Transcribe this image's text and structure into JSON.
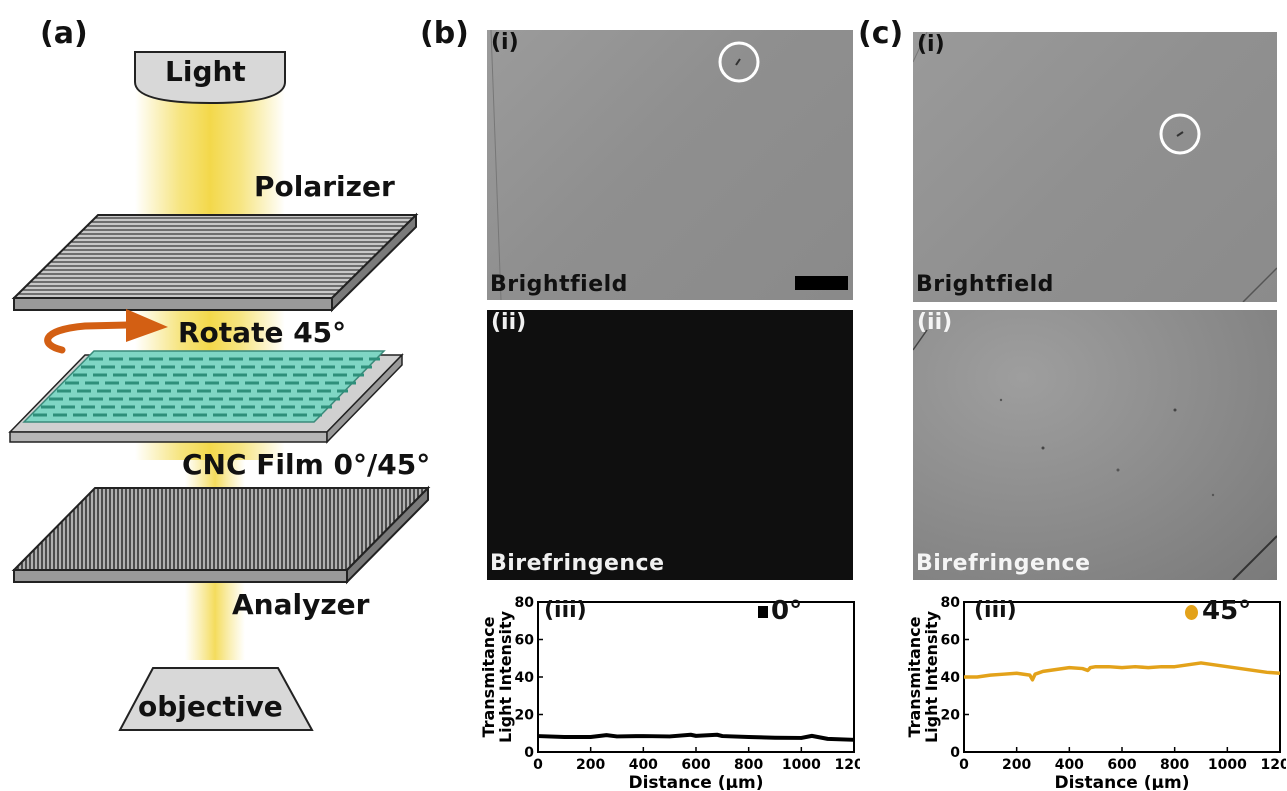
{
  "panels": {
    "a": {
      "label": "(a)",
      "light": "Light",
      "polarizer": "Polarizer",
      "rotate": "Rotate 45°",
      "film": "CNC Film 0°/45°",
      "analyzer": "Analyzer",
      "objective": "objective"
    },
    "b": {
      "label": "(b)",
      "i_label": "(i)",
      "i_caption": "Brightfield",
      "ii_label": "(ii)",
      "ii_caption": "Birefringence",
      "iii_label": "(iii)",
      "legend": "0°"
    },
    "c": {
      "label": "(c)",
      "i_label": "(i)",
      "i_caption": "Brightfield",
      "ii_label": "(ii)",
      "ii_caption": "Birefringence",
      "iii_label": "(iii)",
      "legend": "45°"
    }
  },
  "colors": {
    "light_beam": "#f5e06a",
    "arrow": "#d35f13",
    "film": "#7fd6c4",
    "series_0": "#000000",
    "series_45": "#e3a21a"
  },
  "chart_data": [
    {
      "type": "line",
      "xlabel": "Distance (μm)",
      "ylabel_lines": [
        "Transmitance",
        "Light Intensity"
      ],
      "xlim": [
        0,
        1200
      ],
      "ylim": [
        0,
        80
      ],
      "x_ticks": [
        0,
        200,
        400,
        600,
        800,
        1000,
        1200
      ],
      "y_ticks": [
        0,
        20,
        40,
        60,
        80
      ],
      "series": [
        {
          "name": "0°",
          "x": [
            0,
            100,
            200,
            260,
            300,
            400,
            500,
            580,
            600,
            680,
            700,
            800,
            900,
            1000,
            1040,
            1100,
            1200
          ],
          "values": [
            8.5,
            8,
            8,
            9,
            8.3,
            8.5,
            8.3,
            9.2,
            8.6,
            9.2,
            8.5,
            8,
            7.6,
            7.5,
            8.6,
            7,
            6.5
          ]
        }
      ]
    },
    {
      "type": "line",
      "xlabel": "Distance (μm)",
      "ylabel_lines": [
        "Transmitance",
        "Light Intensity"
      ],
      "xlim": [
        0,
        1200
      ],
      "ylim": [
        0,
        80
      ],
      "x_ticks": [
        0,
        200,
        400,
        600,
        800,
        1000,
        1200
      ],
      "y_ticks": [
        0,
        20,
        40,
        60,
        80
      ],
      "series": [
        {
          "name": "45°",
          "x": [
            0,
            50,
            100,
            150,
            200,
            250,
            260,
            270,
            300,
            350,
            400,
            450,
            470,
            480,
            500,
            550,
            600,
            650,
            700,
            750,
            800,
            850,
            900,
            950,
            1000,
            1050,
            1100,
            1150,
            1200
          ],
          "values": [
            40,
            40,
            41,
            41.5,
            42,
            41,
            38.5,
            41.5,
            43,
            44,
            45,
            44.5,
            43.5,
            45,
            45.5,
            45.5,
            45,
            45.5,
            45,
            45.5,
            45.5,
            46.5,
            47.5,
            46.5,
            45.5,
            44.5,
            43.5,
            42.5,
            42
          ]
        }
      ]
    }
  ]
}
